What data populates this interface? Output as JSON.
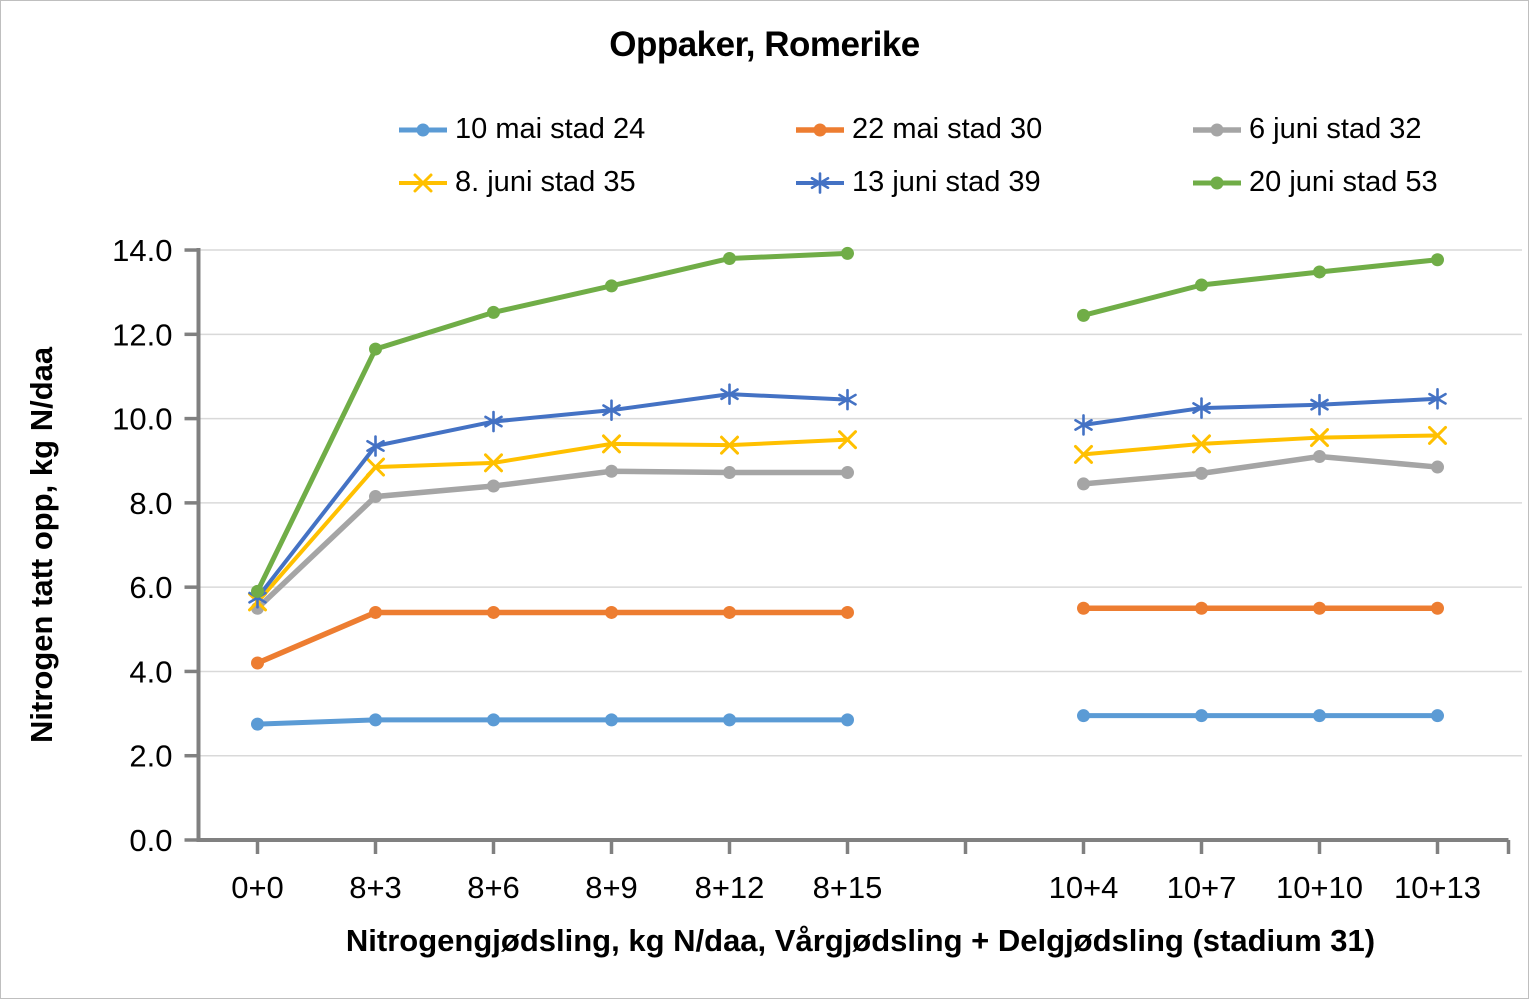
{
  "title": "Oppaker, Romerike",
  "y_axis": {
    "title": "Nitrogen tatt opp, kg N/daa",
    "tick_labels": [
      "0.0",
      "2.0",
      "4.0",
      "6.0",
      "8.0",
      "10.0",
      "12.0",
      "14.0"
    ]
  },
  "x_axis": {
    "title": "Nitrogengjødsling, kg N/daa, Vårgjødsling + Delgjødsling (stadium 31)"
  },
  "colors": {
    "axis": "#808080",
    "gridline": "#d9d9d9",
    "text": "#000000",
    "border": "#bfbfbf"
  },
  "chart_data": {
    "type": "line",
    "title": "Oppaker, Romerike",
    "xlabel": "Nitrogengjødsling, kg N/daa, Vårgjødsling + Delgjødsling (stadium 31)",
    "ylabel": "Nitrogen tatt opp, kg N/daa",
    "ylim": [
      0,
      14
    ],
    "ytick_step": 2,
    "grid": true,
    "legend_position": "top",
    "categories": [
      "0+0",
      "8+3",
      "8+6",
      "8+9",
      "8+12",
      "8+15",
      "",
      "10+4",
      "10+7",
      "10+10",
      "10+13"
    ],
    "series": [
      {
        "name": "10 mai stad 24",
        "color": "#5B9BD5",
        "marker": "circle",
        "line_width": 5,
        "values": [
          2.75,
          2.85,
          2.85,
          2.85,
          2.85,
          2.85,
          null,
          2.95,
          2.95,
          2.95,
          2.95
        ]
      },
      {
        "name": "22 mai stad 30",
        "color": "#ED7D31",
        "marker": "circle",
        "line_width": 5.5,
        "values": [
          4.2,
          5.4,
          5.4,
          5.4,
          5.4,
          5.4,
          null,
          5.5,
          5.5,
          5.5,
          5.5
        ]
      },
      {
        "name": "6 juni stad 32",
        "color": "#A5A5A5",
        "marker": "circle",
        "line_width": 5.5,
        "values": [
          5.5,
          8.15,
          8.4,
          8.75,
          8.72,
          8.72,
          null,
          8.45,
          8.7,
          9.1,
          8.85
        ]
      },
      {
        "name": "8. juni stad 35",
        "color": "#FFC000",
        "marker": "x",
        "line_width": 4,
        "values": [
          5.65,
          8.85,
          8.95,
          9.4,
          9.37,
          9.5,
          null,
          9.15,
          9.4,
          9.55,
          9.6
        ]
      },
      {
        "name": "13 juni stad 39",
        "color": "#4472C4",
        "marker": "asterisk",
        "line_width": 4,
        "values": [
          5.75,
          9.35,
          9.93,
          10.2,
          10.58,
          10.45,
          null,
          9.85,
          10.25,
          10.33,
          10.47
        ]
      },
      {
        "name": "20 juni stad 53",
        "color": "#70AD47",
        "marker": "circle",
        "line_width": 5,
        "values": [
          5.9,
          11.65,
          12.52,
          13.15,
          13.8,
          13.92,
          null,
          12.45,
          13.17,
          13.48,
          13.77
        ]
      }
    ]
  }
}
